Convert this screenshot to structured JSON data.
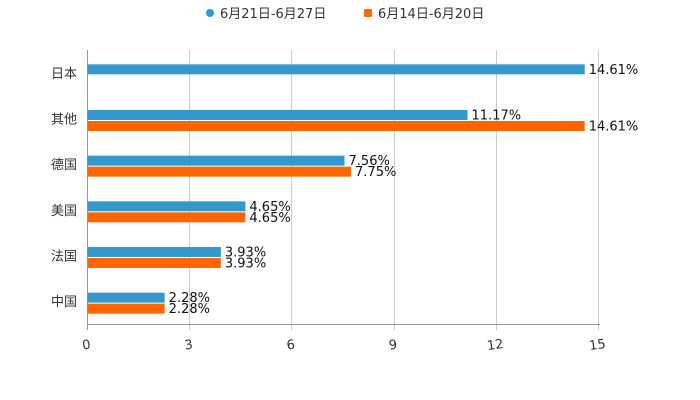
{
  "chart_data": {
    "type": "bar",
    "orientation": "horizontal",
    "title": "",
    "xlabel": "",
    "ylabel": "",
    "xlim": [
      0,
      15
    ],
    "ticks": [
      0,
      3,
      6,
      9,
      12,
      15
    ],
    "tick_labels": [
      "0",
      "3",
      "6",
      "9",
      "12",
      "15"
    ],
    "grid": true,
    "legend_position": "top-center",
    "categories": [
      "日本",
      "其他",
      "德国",
      "美国",
      "法国",
      "中国"
    ],
    "series": [
      {
        "name": "6月21日-6月27日",
        "color": "#3399cc",
        "values": [
          14.61,
          11.17,
          7.56,
          4.65,
          3.93,
          2.28
        ],
        "labels": [
          "14.61%",
          "11.17%",
          "7.56%",
          "4.65%",
          "3.93%",
          "2.28%"
        ]
      },
      {
        "name": "6月14日-6月20日",
        "color": "#ff6600",
        "values": [
          null,
          14.61,
          7.75,
          4.65,
          3.93,
          2.28
        ],
        "labels": [
          "",
          "14.61%",
          "7.75%",
          "4.65%",
          "3.93%",
          "2.28%"
        ]
      }
    ]
  }
}
